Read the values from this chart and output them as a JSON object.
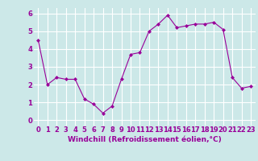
{
  "x": [
    0,
    1,
    2,
    3,
    4,
    5,
    6,
    7,
    8,
    9,
    10,
    11,
    12,
    13,
    14,
    15,
    16,
    17,
    18,
    19,
    20,
    21,
    22,
    23
  ],
  "y": [
    4.5,
    2.0,
    2.4,
    2.3,
    2.3,
    1.2,
    0.9,
    0.4,
    0.8,
    2.3,
    3.7,
    3.8,
    5.0,
    5.4,
    5.9,
    5.2,
    5.3,
    5.4,
    5.4,
    5.5,
    5.1,
    2.4,
    1.8,
    1.9
  ],
  "line_color": "#990099",
  "marker": "D",
  "marker_size": 2.0,
  "bg_color": "#cce8e8",
  "grid_color": "#ffffff",
  "xlabel": "Windchill (Refroidissement éolien,°C)",
  "xlabel_color": "#990099",
  "xlabel_fontsize": 6.5,
  "tick_color": "#990099",
  "tick_fontsize": 6,
  "ylim": [
    -0.3,
    6.3
  ],
  "xlim": [
    -0.5,
    23.5
  ],
  "yticks": [
    0,
    1,
    2,
    3,
    4,
    5,
    6
  ],
  "xticks": [
    0,
    1,
    2,
    3,
    4,
    5,
    6,
    7,
    8,
    9,
    10,
    11,
    12,
    13,
    14,
    15,
    16,
    17,
    18,
    19,
    20,
    21,
    22,
    23
  ]
}
